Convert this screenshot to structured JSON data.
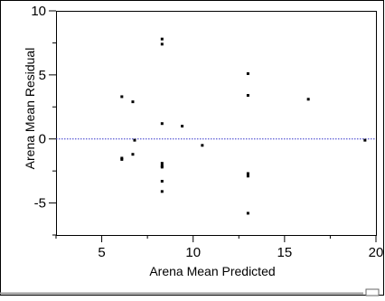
{
  "chart_data": {
    "type": "scatter",
    "xlabel": "Arena Mean Predicted",
    "ylabel": "Arena Mean Residual",
    "xlim": [
      2.5,
      20
    ],
    "ylim": [
      -7.5,
      10
    ],
    "x_ticks": [
      5,
      10,
      15,
      20
    ],
    "y_ticks": [
      -5,
      0,
      5,
      10
    ],
    "x_tick_labels": [
      "5",
      "10",
      "15",
      "20"
    ],
    "y_tick_labels": [
      "-5",
      "0",
      "5",
      "10"
    ],
    "grid": false,
    "reference_line": {
      "y": 0,
      "color": "#3333cc",
      "style": "dotted"
    },
    "point_color": "#000000",
    "series": [
      {
        "points": [
          {
            "x": 6.1,
            "y": 3.3
          },
          {
            "x": 6.7,
            "y": 2.9
          },
          {
            "x": 6.1,
            "y": -1.5
          },
          {
            "x": 6.1,
            "y": -1.6
          },
          {
            "x": 6.7,
            "y": -1.2
          },
          {
            "x": 6.8,
            "y": -0.1
          },
          {
            "x": 8.3,
            "y": 7.8
          },
          {
            "x": 8.3,
            "y": 7.4
          },
          {
            "x": 8.3,
            "y": 1.2
          },
          {
            "x": 8.3,
            "y": -1.9
          },
          {
            "x": 8.3,
            "y": -2.1
          },
          {
            "x": 8.3,
            "y": -2.2
          },
          {
            "x": 8.3,
            "y": -3.3
          },
          {
            "x": 8.3,
            "y": -4.1
          },
          {
            "x": 9.4,
            "y": 1.0
          },
          {
            "x": 10.5,
            "y": -0.5
          },
          {
            "x": 13.0,
            "y": 5.1
          },
          {
            "x": 13.0,
            "y": 3.4
          },
          {
            "x": 13.0,
            "y": -2.7
          },
          {
            "x": 13.0,
            "y": -2.9
          },
          {
            "x": 13.0,
            "y": -5.8
          },
          {
            "x": 16.3,
            "y": 3.1
          },
          {
            "x": 19.4,
            "y": -0.1
          }
        ]
      }
    ]
  }
}
